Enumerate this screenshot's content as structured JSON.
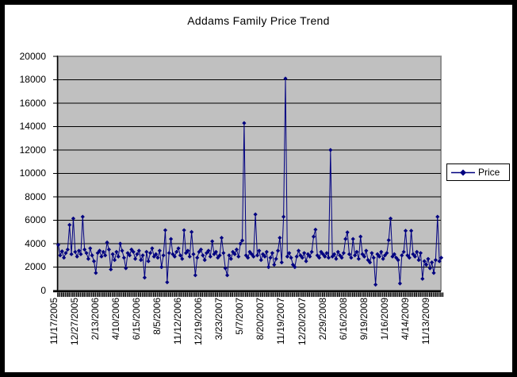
{
  "chart_data": {
    "type": "line",
    "title": "Addams Family Price Trend",
    "legend_position": "right",
    "grid": true,
    "plot_bg": "#C0C0C0",
    "plot_border_color": "#909090",
    "grid_color": "#000000",
    "axis_color": "#000000",
    "ylim": [
      0,
      20000
    ],
    "y_tick_step": 2000,
    "y_tick_labels": [
      "0",
      "2000",
      "4000",
      "6000",
      "8000",
      "10000",
      "12000",
      "14000",
      "16000",
      "18000",
      "20000"
    ],
    "x_tick_labels": [
      "11/17/2005",
      "12/27/2005",
      "2/13/2006",
      "4/10/2006",
      "6/15/2006",
      "8/5/2006",
      "11/12/2006",
      "12/19/2006",
      "3/23/2007",
      "5/7/2007",
      "8/20/2007",
      "11/19/2007",
      "12/20/2007",
      "2/29/2008",
      "6/16/2008",
      "9/19/2008",
      "1/16/2009",
      "4/14/2009",
      "11/13/2009"
    ],
    "x_label_interval": 11,
    "series": [
      {
        "name": "Price",
        "color": "#000080",
        "marker": "diamond",
        "values": [
          3900,
          3000,
          3350,
          2800,
          3200,
          3500,
          5600,
          3100,
          6150,
          3300,
          2900,
          3400,
          3100,
          6300,
          3500,
          3200,
          2700,
          3600,
          3000,
          2500,
          1500,
          3200,
          3400,
          2900,
          3300,
          3000,
          4100,
          3500,
          1800,
          3100,
          2600,
          3300,
          2900,
          4000,
          3400,
          2800,
          1900,
          3200,
          3000,
          3500,
          3300,
          2700,
          3100,
          3400,
          2600,
          3000,
          1100,
          3300,
          2500,
          3200,
          3600,
          2900,
          3100,
          2800,
          3400,
          2000,
          3000,
          5150,
          700,
          3200,
          4400,
          3100,
          2900,
          3300,
          3600,
          3000,
          2700,
          5150,
          3200,
          3400,
          2900,
          5000,
          3100,
          1300,
          2800,
          3300,
          3500,
          3000,
          2600,
          3200,
          3400,
          2900,
          4200,
          3100,
          3300,
          2800,
          3000,
          4500,
          3200,
          1900,
          1300,
          3000,
          2700,
          3300,
          3100,
          3500,
          2900,
          4000,
          4270,
          14300,
          3000,
          2800,
          3300,
          3100,
          2900,
          6500,
          3000,
          3400,
          2600,
          3100,
          2900,
          3300,
          2000,
          2800,
          3200,
          2200,
          2700,
          3400,
          4500,
          2400,
          6300,
          18100,
          2900,
          3200,
          2800,
          2200,
          2000,
          2900,
          3400,
          3000,
          2800,
          3200,
          2500,
          3100,
          2900,
          3300,
          4600,
          5200,
          3000,
          2800,
          3300,
          3100,
          2900,
          3200,
          2800,
          12000,
          2900,
          3100,
          2700,
          3300,
          3000,
          2800,
          3200,
          4400,
          4970,
          3100,
          2800,
          4400,
          3000,
          3300,
          2700,
          4600,
          3100,
          2900,
          3400,
          2600,
          2400,
          3200,
          2800,
          500,
          3100,
          2900,
          3300,
          2700,
          3000,
          3200,
          4300,
          6150,
          2900,
          3100,
          2800,
          2600,
          600,
          3000,
          3300,
          5100,
          3000,
          2800,
          5100,
          3100,
          2900,
          3300,
          2600,
          3200,
          1000,
          2500,
          2200,
          2700,
          1900,
          2400,
          1500,
          2600,
          6300,
          2500,
          2800
        ]
      }
    ]
  },
  "legend": {
    "label": "Price"
  },
  "frame": {
    "border_color": "#000000",
    "background": "#FFFFFF"
  }
}
